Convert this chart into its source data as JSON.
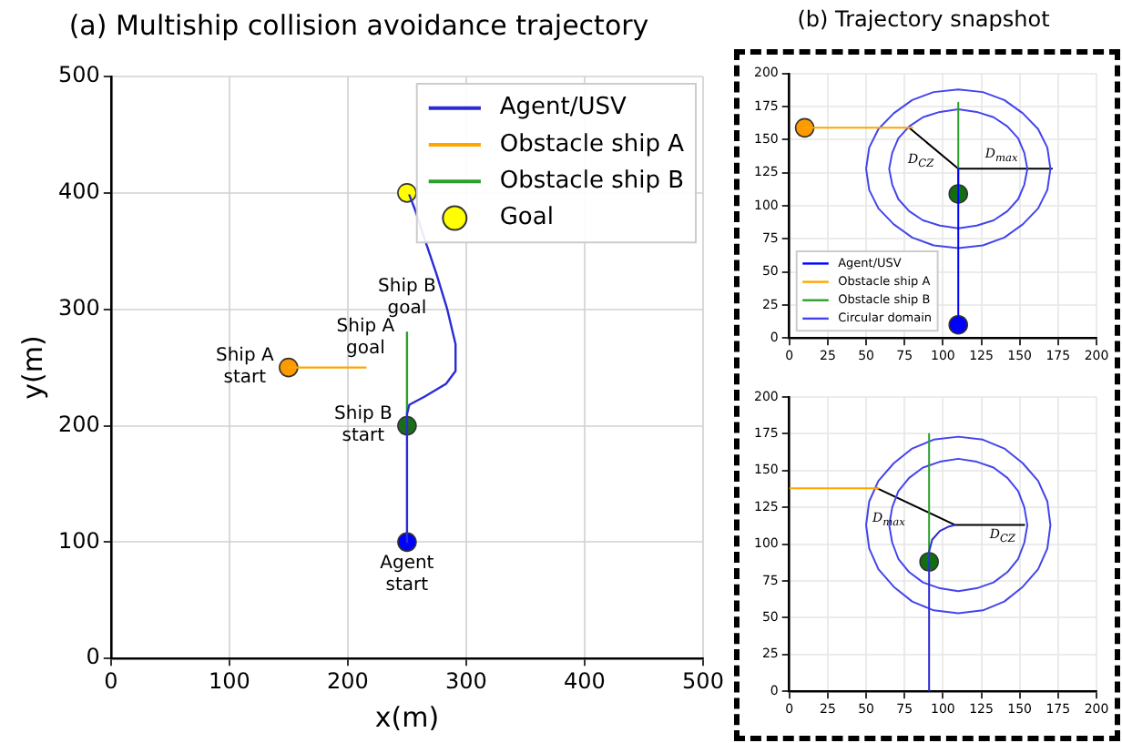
{
  "chart_data": [
    {
      "type": "line",
      "title": "(a) Multiship collision avoidance trajectory",
      "xlabel": "x(m)",
      "ylabel": "y(m)",
      "xlim": [
        0,
        500
      ],
      "ylim": [
        0,
        500
      ],
      "xticks": [
        0,
        100,
        200,
        300,
        400,
        500
      ],
      "yticks": [
        0,
        100,
        200,
        300,
        400,
        500
      ],
      "grid": true,
      "legend": "top right",
      "series": [
        {
          "name": "Agent/USV",
          "color": "#2b2bd6",
          "marker": "none",
          "x": [
            250,
            250,
            252,
            265,
            283,
            291,
            291,
            284,
            275,
            265,
            257,
            252
          ],
          "values": [
            100,
            210,
            218,
            225,
            236,
            247,
            270,
            300,
            330,
            360,
            385,
            398
          ]
        },
        {
          "name": "Obstacle ship A",
          "color": "#ffa500",
          "marker": "none",
          "x": [
            150,
            215
          ],
          "values": [
            250,
            250
          ]
        },
        {
          "name": "Obstacle ship B",
          "color": "#2ca02c",
          "marker": "none",
          "x": [
            250,
            250
          ],
          "values": [
            200,
            280
          ]
        },
        {
          "name": "Goal",
          "type": "scatter",
          "color": "#ffff00",
          "marker": "circle",
          "x": [
            250
          ],
          "values": [
            400
          ]
        },
        {
          "type": "scatter",
          "color": "#0000ff",
          "marker": "circle",
          "x": [
            250
          ],
          "values": [
            100
          ]
        },
        {
          "type": "scatter",
          "color": "#ff9900",
          "marker": "circle",
          "x": [
            150
          ],
          "values": [
            250
          ]
        },
        {
          "type": "scatter",
          "color": "#1a6e1a",
          "marker": "circle",
          "x": [
            250
          ],
          "values": [
            200
          ]
        }
      ],
      "annotations": [
        {
          "text": "Ship A\nstart",
          "x": 150,
          "y": 250
        },
        {
          "text": "Ship A\ngoal",
          "x": 215,
          "y": 250
        },
        {
          "text": "Ship B\ngoal",
          "x": 250,
          "y": 280
        },
        {
          "text": "Ship B\nstart",
          "x": 250,
          "y": 200
        },
        {
          "text": "Agent\nstart",
          "x": 250,
          "y": 100
        }
      ]
    },
    {
      "type": "line",
      "title": "(b) Trajectory snapshot",
      "xlim": [
        0,
        200
      ],
      "ylim": [
        0,
        200
      ],
      "xticks": [
        0,
        25,
        50,
        75,
        100,
        125,
        150,
        175,
        200
      ],
      "yticks": [
        0,
        25,
        50,
        75,
        100,
        125,
        150,
        175,
        200
      ],
      "grid": true,
      "legend": "bottom left",
      "series": [
        {
          "name": "Agent/USV",
          "color": "#0000ff",
          "marker": "none",
          "x": [
            110,
            110
          ],
          "values": [
            10,
            128
          ]
        },
        {
          "name": "Obstacle ship A",
          "color": "#ffa500",
          "marker": "none",
          "x": [
            10,
            80
          ],
          "values": [
            159,
            159
          ]
        },
        {
          "name": "Obstacle ship B",
          "color": "#2ca02c",
          "marker": "none",
          "x": [
            110,
            110
          ],
          "values": [
            109,
            178
          ]
        },
        {
          "name": "Circular domain",
          "color": "#4444ee",
          "marker": "none",
          "x": [
            50,
            52,
            58,
            68,
            80,
            94,
            110,
            126,
            140,
            152,
            162,
            168,
            170,
            null,
            50,
            52,
            58,
            68,
            80,
            94,
            110,
            126,
            140,
            152,
            162,
            168,
            170
          ],
          "values": [
            128,
            144,
            158,
            170,
            180,
            186,
            188,
            186,
            180,
            170,
            158,
            144,
            128,
            null,
            128,
            112,
            98,
            86,
            76,
            70,
            68,
            70,
            76,
            86,
            98,
            112,
            128
          ]
        },
        {
          "color": "#4444ee",
          "marker": "none",
          "x": [
            65,
            67,
            71,
            78,
            87,
            98,
            110,
            122,
            133,
            142,
            149,
            153,
            155,
            null,
            65,
            67,
            71,
            78,
            87,
            98,
            110,
            122,
            133,
            142,
            149,
            153,
            155
          ],
          "values": [
            128,
            140,
            151,
            160,
            167,
            171,
            173,
            171,
            167,
            160,
            151,
            140,
            128,
            null,
            128,
            116,
            105,
            96,
            89,
            85,
            83,
            85,
            89,
            96,
            105,
            116,
            128
          ]
        },
        {
          "color": "#000000",
          "marker": "none",
          "x": [
            78,
            110,
            171
          ],
          "values": [
            159,
            128,
            128
          ]
        },
        {
          "type": "scatter",
          "color": "#0000ff",
          "marker": "circle",
          "x": [
            110
          ],
          "values": [
            10
          ]
        },
        {
          "type": "scatter",
          "color": "#ff9900",
          "marker": "circle",
          "x": [
            10
          ],
          "values": [
            159
          ]
        },
        {
          "type": "scatter",
          "color": "#107010",
          "marker": "circle",
          "x": [
            110
          ],
          "values": [
            109
          ]
        }
      ],
      "annotations": [
        {
          "text": "D$_{CZ}$",
          "x": 94,
          "y": 143.5
        },
        {
          "text": "D$_{max}$",
          "x": 140.5,
          "y": 128
        }
      ]
    },
    {
      "type": "line",
      "xlim": [
        0,
        200
      ],
      "ylim": [
        0,
        200
      ],
      "xticks": [
        0,
        25,
        50,
        75,
        100,
        125,
        150,
        175,
        200
      ],
      "yticks": [
        0,
        25,
        50,
        75,
        100,
        125,
        150,
        175,
        200
      ],
      "grid": true,
      "series": [
        {
          "color": "#2b2bd6",
          "marker": "none",
          "x": [
            91,
            91,
            93,
            98,
            104,
            108
          ],
          "values": [
            0,
            95,
            103,
            109,
            112,
            113
          ]
        },
        {
          "color": "#ffa500",
          "marker": "none",
          "x": [
            0,
            58
          ],
          "values": [
            138,
            138
          ]
        },
        {
          "color": "#2ca02c",
          "marker": "none",
          "x": [
            91,
            91
          ],
          "values": [
            88,
            175
          ]
        },
        {
          "color": "#4444ee",
          "marker": "none",
          "x": [
            50,
            52,
            58,
            68,
            80,
            94,
            110,
            126,
            140,
            152,
            162,
            168,
            170,
            null,
            50,
            52,
            58,
            68,
            80,
            94,
            110,
            126,
            140,
            152,
            162,
            168,
            170
          ],
          "values": [
            113,
            129,
            143,
            155,
            165,
            171,
            173,
            171,
            165,
            155,
            143,
            129,
            113,
            null,
            113,
            97,
            83,
            71,
            61,
            55,
            53,
            55,
            61,
            71,
            83,
            97,
            113
          ]
        },
        {
          "color": "#4444ee",
          "marker": "none",
          "x": [
            65,
            67,
            71,
            78,
            87,
            98,
            110,
            122,
            133,
            142,
            149,
            153,
            155,
            null,
            65,
            67,
            71,
            78,
            87,
            98,
            110,
            122,
            133,
            142,
            149,
            153,
            155
          ],
          "values": [
            113,
            125,
            136,
            145,
            152,
            156,
            158,
            156,
            152,
            145,
            136,
            125,
            113,
            null,
            113,
            101,
            90,
            81,
            74,
            70,
            68,
            70,
            74,
            81,
            90,
            101,
            113
          ]
        },
        {
          "color": "#000000",
          "marker": "none",
          "x": [
            57,
            108,
            153
          ],
          "values": [
            138,
            113,
            113
          ]
        },
        {
          "type": "scatter",
          "color": "#107010",
          "marker": "circle",
          "x": [
            91
          ],
          "values": [
            88
          ]
        }
      ],
      "annotations": [
        {
          "text": "D$_{max}$",
          "x": 82.5,
          "y": 125.5
        },
        {
          "text": "D$_{CZ}$",
          "x": 130.5,
          "y": 113
        }
      ]
    }
  ]
}
